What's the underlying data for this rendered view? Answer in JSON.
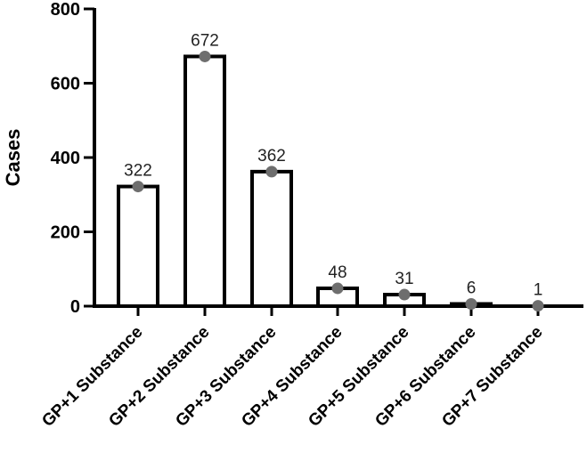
{
  "chart_data": {
    "type": "bar",
    "title": "",
    "xlabel": "",
    "ylabel": "Cases",
    "ylim": [
      0,
      800
    ],
    "yticks": [
      0,
      200,
      400,
      600,
      800
    ],
    "grid": false,
    "legend": null,
    "categories": [
      "GP+1 Substance",
      "GP+2 Substance",
      "GP+3 Substance",
      "GP+4 Substance",
      "GP+5 Substance",
      "GP+6 Substance",
      "GP+7 Substance"
    ],
    "values": [
      322,
      672,
      362,
      48,
      31,
      6,
      1
    ],
    "data_labels": [
      "322",
      "672",
      "362",
      "48",
      "31",
      "6",
      "1"
    ],
    "style": {
      "bar_fill": "#ffffff",
      "bar_stroke": "#000000",
      "point_color": "#6e6e6e"
    }
  }
}
